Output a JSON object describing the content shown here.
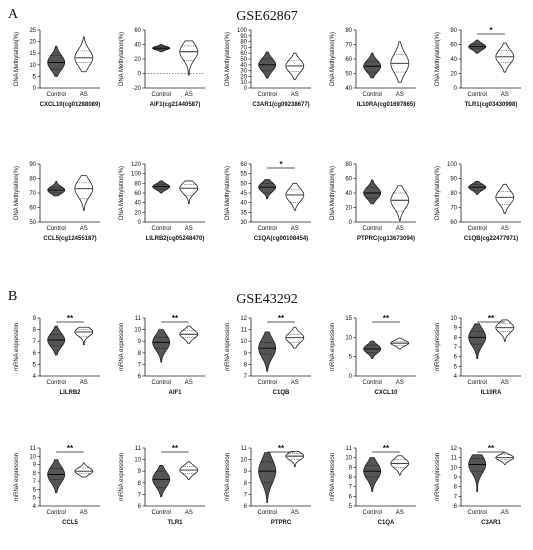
{
  "figure": {
    "panel_A_letter": "A",
    "panel_B_letter": "B",
    "panel_A_title": "GSE62867",
    "panel_B_title": "GSE43292",
    "colors": {
      "control": "#555555",
      "as": "#ffffff",
      "stroke": "#222222",
      "axis": "#222222"
    }
  },
  "chart_data": [
    {
      "type": "violin",
      "ylabel": "DNA Methylation(%)",
      "xlabel": "CXCL10(cg01288089)",
      "categories": [
        "Control",
        "AS"
      ],
      "ylim": [
        0,
        25
      ],
      "yticks": [
        0,
        5,
        10,
        15,
        20,
        25
      ],
      "significance": "",
      "series": [
        {
          "name": "Control",
          "min": 5,
          "max": 18,
          "median": 11,
          "q1": 8,
          "q3": 14
        },
        {
          "name": "AS",
          "min": 7,
          "max": 22,
          "median": 13,
          "q1": 11,
          "q3": 16
        }
      ]
    },
    {
      "type": "violin",
      "ylabel": "DNA Methylation(%)",
      "xlabel": "AIF1(cg21440587)",
      "categories": [
        "Control",
        "AS"
      ],
      "ylim": [
        -20,
        60
      ],
      "yticks": [
        -20,
        0,
        20,
        40,
        60
      ],
      "dashed_zero": true,
      "significance": "",
      "series": [
        {
          "name": "Control",
          "min": 30,
          "max": 40,
          "median": 35,
          "q1": 33,
          "q3": 37
        },
        {
          "name": "AS",
          "min": -2,
          "max": 45,
          "median": 30,
          "q1": 18,
          "q3": 38
        }
      ]
    },
    {
      "type": "violin",
      "ylabel": "DNA Methylation(%)",
      "xlabel": "C3AR1(cg09238677)",
      "categories": [
        "Control",
        "AS"
      ],
      "ylim": [
        0,
        100
      ],
      "yticks": [
        0,
        10,
        20,
        30,
        40,
        50,
        60,
        70,
        80,
        90,
        100
      ],
      "significance": "",
      "series": [
        {
          "name": "Control",
          "min": 17,
          "max": 62,
          "median": 40,
          "q1": 30,
          "q3": 50
        },
        {
          "name": "AS",
          "min": 15,
          "max": 60,
          "median": 38,
          "q1": 28,
          "q3": 48
        }
      ]
    },
    {
      "type": "violin",
      "ylabel": "DNA Methylation(%)",
      "xlabel": "IL10RA(cg01697865)",
      "categories": [
        "Control",
        "AS"
      ],
      "ylim": [
        40,
        80
      ],
      "yticks": [
        40,
        50,
        60,
        70,
        80
      ],
      "significance": "",
      "series": [
        {
          "name": "Control",
          "min": 47,
          "max": 64,
          "median": 55,
          "q1": 51,
          "q3": 58
        },
        {
          "name": "AS",
          "min": 44,
          "max": 72,
          "median": 57,
          "q1": 51,
          "q3": 63
        }
      ]
    },
    {
      "type": "violin",
      "ylabel": "DNA Methylation(%)",
      "xlabel": "TLR1(cg03430998)",
      "categories": [
        "Control",
        "AS"
      ],
      "ylim": [
        0,
        80
      ],
      "yticks": [
        0,
        20,
        40,
        60,
        80
      ],
      "significance": "*",
      "series": [
        {
          "name": "Control",
          "min": 48,
          "max": 66,
          "median": 57,
          "q1": 54,
          "q3": 60
        },
        {
          "name": "AS",
          "min": 22,
          "max": 62,
          "median": 43,
          "q1": 35,
          "q3": 52
        }
      ]
    },
    {
      "type": "violin",
      "ylabel": "DNA Methylation(%)",
      "xlabel": "CCL5(cg12455187)",
      "categories": [
        "Control",
        "AS"
      ],
      "ylim": [
        50,
        90
      ],
      "yticks": [
        50,
        60,
        70,
        80,
        90
      ],
      "significance": "",
      "series": [
        {
          "name": "Control",
          "min": 68,
          "max": 78,
          "median": 72,
          "q1": 70,
          "q3": 74
        },
        {
          "name": "AS",
          "min": 58,
          "max": 82,
          "median": 73,
          "q1": 66,
          "q3": 77
        }
      ]
    },
    {
      "type": "violin",
      "ylabel": "DNA Methylation(%)",
      "xlabel": "LILRB2(cg05248470)",
      "categories": [
        "Control",
        "AS"
      ],
      "ylim": [
        0,
        120
      ],
      "yticks": [
        0,
        20,
        40,
        60,
        80,
        100,
        120
      ],
      "significance": "",
      "series": [
        {
          "name": "Control",
          "min": 60,
          "max": 85,
          "median": 73,
          "q1": 68,
          "q3": 78
        },
        {
          "name": "AS",
          "min": 38,
          "max": 85,
          "median": 70,
          "q1": 55,
          "q3": 78
        }
      ]
    },
    {
      "type": "violin",
      "ylabel": "DNA Methylation(%)",
      "xlabel": "C1QA(cg00108454)",
      "categories": [
        "Control",
        "AS"
      ],
      "ylim": [
        30,
        60
      ],
      "yticks": [
        30,
        35,
        40,
        45,
        50,
        55,
        60
      ],
      "significance": "*",
      "series": [
        {
          "name": "Control",
          "min": 42,
          "max": 52,
          "median": 48,
          "q1": 45,
          "q3": 50
        },
        {
          "name": "AS",
          "min": 36,
          "max": 50,
          "median": 44,
          "q1": 40,
          "q3": 47
        }
      ]
    },
    {
      "type": "violin",
      "ylabel": "DNA Methylation(%)",
      "xlabel": "PTPRC(cg13673094)",
      "categories": [
        "Control",
        "AS"
      ],
      "ylim": [
        0,
        80
      ],
      "yticks": [
        0,
        20,
        40,
        60,
        80
      ],
      "significance": "",
      "series": [
        {
          "name": "Control",
          "min": 25,
          "max": 58,
          "median": 40,
          "q1": 33,
          "q3": 48
        },
        {
          "name": "AS",
          "min": 2,
          "max": 50,
          "median": 30,
          "q1": 15,
          "q3": 40
        }
      ]
    },
    {
      "type": "violin",
      "ylabel": "DNA Methylation(%)",
      "xlabel": "C1QB(cg22477971)",
      "categories": [
        "Control",
        "AS"
      ],
      "ylim": [
        60,
        100
      ],
      "yticks": [
        60,
        70,
        80,
        90,
        100
      ],
      "significance": "",
      "series": [
        {
          "name": "Control",
          "min": 79,
          "max": 88,
          "median": 84,
          "q1": 82,
          "q3": 86
        },
        {
          "name": "AS",
          "min": 66,
          "max": 86,
          "median": 77,
          "q1": 72,
          "q3": 81
        }
      ]
    },
    {
      "type": "violin",
      "ylabel": "mRNA expression",
      "xlabel": "LILRB2",
      "categories": [
        "Control",
        "AS"
      ],
      "ylim": [
        4,
        9
      ],
      "yticks": [
        4,
        5,
        6,
        7,
        8,
        9
      ],
      "significance": "**",
      "series": [
        {
          "name": "Control",
          "min": 5.8,
          "max": 8.3,
          "median": 7.1,
          "q1": 6.6,
          "q3": 7.6
        },
        {
          "name": "AS",
          "min": 6.7,
          "max": 8.2,
          "median": 7.8,
          "q1": 7.4,
          "q3": 8.0
        }
      ]
    },
    {
      "type": "violin",
      "ylabel": "mRNA expression",
      "xlabel": "AIF1",
      "categories": [
        "Control",
        "AS"
      ],
      "ylim": [
        6,
        11
      ],
      "yticks": [
        6,
        7,
        8,
        9,
        10,
        11
      ],
      "significance": "**",
      "series": [
        {
          "name": "Control",
          "min": 7.2,
          "max": 10.0,
          "median": 8.9,
          "q1": 8.4,
          "q3": 9.3
        },
        {
          "name": "AS",
          "min": 8.8,
          "max": 10.3,
          "median": 9.6,
          "q1": 9.3,
          "q3": 9.9
        }
      ]
    },
    {
      "type": "violin",
      "ylabel": "mRNA expression",
      "xlabel": "C1QB",
      "categories": [
        "Control",
        "AS"
      ],
      "ylim": [
        7,
        12
      ],
      "yticks": [
        7,
        8,
        9,
        10,
        11,
        12
      ],
      "significance": "**",
      "series": [
        {
          "name": "Control",
          "min": 7.4,
          "max": 10.8,
          "median": 9.4,
          "q1": 8.9,
          "q3": 9.9
        },
        {
          "name": "AS",
          "min": 9.4,
          "max": 11.2,
          "median": 10.3,
          "q1": 9.9,
          "q3": 10.6
        }
      ]
    },
    {
      "type": "violin",
      "ylabel": "mRNA expression",
      "xlabel": "CXCL10",
      "categories": [
        "Control",
        "AS"
      ],
      "ylim": [
        0,
        15
      ],
      "yticks": [
        0,
        5,
        10,
        15
      ],
      "significance": "**",
      "series": [
        {
          "name": "Control",
          "min": 4.5,
          "max": 9.0,
          "median": 7.0,
          "q1": 6.0,
          "q3": 8.0
        },
        {
          "name": "AS",
          "min": 7.0,
          "max": 9.8,
          "median": 8.5,
          "q1": 7.8,
          "q3": 9.0
        }
      ]
    },
    {
      "type": "violin",
      "ylabel": "mRNA expression",
      "xlabel": "IL10RA",
      "categories": [
        "Control",
        "AS"
      ],
      "ylim": [
        4,
        10
      ],
      "yticks": [
        4,
        5,
        6,
        7,
        8,
        9,
        10
      ],
      "significance": "**",
      "series": [
        {
          "name": "Control",
          "min": 5.8,
          "max": 9.4,
          "median": 8.0,
          "q1": 7.3,
          "q3": 8.6
        },
        {
          "name": "AS",
          "min": 7.6,
          "max": 9.8,
          "median": 9.0,
          "q1": 8.6,
          "q3": 9.4
        }
      ]
    },
    {
      "type": "violin",
      "ylabel": "mRNA expression",
      "xlabel": "CCL5",
      "categories": [
        "Control",
        "AS"
      ],
      "ylim": [
        4,
        11
      ],
      "yticks": [
        4,
        5,
        6,
        7,
        8,
        9,
        10,
        11
      ],
      "significance": "**",
      "series": [
        {
          "name": "Control",
          "min": 5.6,
          "max": 9.6,
          "median": 7.8,
          "q1": 7.2,
          "q3": 8.5
        },
        {
          "name": "AS",
          "min": 7.5,
          "max": 9.2,
          "median": 8.2,
          "q1": 7.9,
          "q3": 8.6
        }
      ]
    },
    {
      "type": "violin",
      "ylabel": "mRNA expression",
      "xlabel": "TLR1",
      "categories": [
        "Control",
        "AS"
      ],
      "ylim": [
        6,
        11
      ],
      "yticks": [
        6,
        7,
        8,
        9,
        10,
        11
      ],
      "significance": "**",
      "series": [
        {
          "name": "Control",
          "min": 6.8,
          "max": 9.5,
          "median": 8.3,
          "q1": 7.6,
          "q3": 9.0
        },
        {
          "name": "AS",
          "min": 8.3,
          "max": 9.8,
          "median": 9.1,
          "q1": 8.8,
          "q3": 9.4
        }
      ]
    },
    {
      "type": "violin",
      "ylabel": "mRNA expression",
      "xlabel": "PTPRC",
      "categories": [
        "Control",
        "AS"
      ],
      "ylim": [
        6,
        11
      ],
      "yticks": [
        6,
        7,
        8,
        9,
        10,
        11
      ],
      "significance": "**",
      "series": [
        {
          "name": "Control",
          "min": 6.3,
          "max": 10.6,
          "median": 9.0,
          "q1": 8.0,
          "q3": 9.8
        },
        {
          "name": "AS",
          "min": 9.4,
          "max": 10.7,
          "median": 10.3,
          "q1": 10.0,
          "q3": 10.5
        }
      ]
    },
    {
      "type": "violin",
      "ylabel": "mRNA expression",
      "xlabel": "C1QA",
      "categories": [
        "Control",
        "AS"
      ],
      "ylim": [
        5,
        11
      ],
      "yticks": [
        5,
        6,
        7,
        8,
        9,
        10,
        11
      ],
      "significance": "**",
      "series": [
        {
          "name": "Control",
          "min": 6.5,
          "max": 10.0,
          "median": 8.6,
          "q1": 8.0,
          "q3": 9.2
        },
        {
          "name": "AS",
          "min": 8.2,
          "max": 10.2,
          "median": 9.4,
          "q1": 9.0,
          "q3": 9.8
        }
      ]
    },
    {
      "type": "violin",
      "ylabel": "mRNA expression",
      "xlabel": "C3AR1",
      "categories": [
        "Control",
        "AS"
      ],
      "ylim": [
        6,
        12
      ],
      "yticks": [
        6,
        7,
        8,
        9,
        10,
        11,
        12
      ],
      "significance": "**",
      "series": [
        {
          "name": "Control",
          "min": 7.5,
          "max": 11.3,
          "median": 10.3,
          "q1": 9.6,
          "q3": 10.9
        },
        {
          "name": "AS",
          "min": 10.3,
          "max": 11.5,
          "median": 11.0,
          "q1": 10.8,
          "q3": 11.3
        }
      ]
    }
  ]
}
